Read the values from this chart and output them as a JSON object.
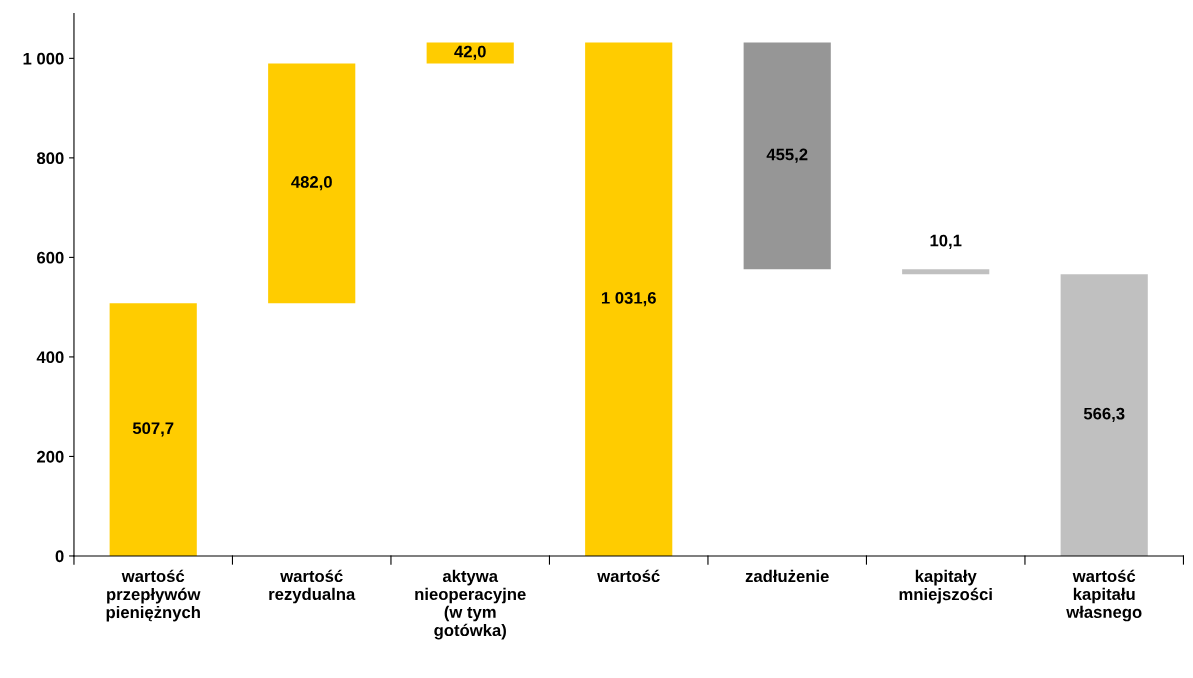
{
  "chart_data": {
    "type": "bar",
    "categories": [
      "wartość przepływów pieniężnych",
      "wartość rezydualna",
      "aktywa nieoperacyjne (w tym gotówka)",
      "wartość",
      "zadłużenie",
      "kapitały mniejszości",
      "wartość kapitału własnego"
    ],
    "values": [
      507.7,
      482.0,
      42.0,
      1031.6,
      455.2,
      10.1,
      566.3
    ],
    "base": [
      0,
      507.7,
      989.7,
      0,
      576.4,
      566.3,
      0
    ],
    "colors": [
      "#ffcc00",
      "#ffcc00",
      "#ffcc00",
      "#ffcc00",
      "#969696",
      "#c0c0c0",
      "#c0c0c0"
    ],
    "value_labels": [
      "507,7",
      "482,0",
      "42,0",
      "1 031,6",
      "455,2",
      "10,1",
      "566,3"
    ],
    "ylim": [
      0,
      1090
    ],
    "yticks": [
      0,
      200,
      400,
      600,
      800,
      {
        "value": 1000,
        "label": "1 000"
      }
    ],
    "grid": false,
    "legend": false
  }
}
